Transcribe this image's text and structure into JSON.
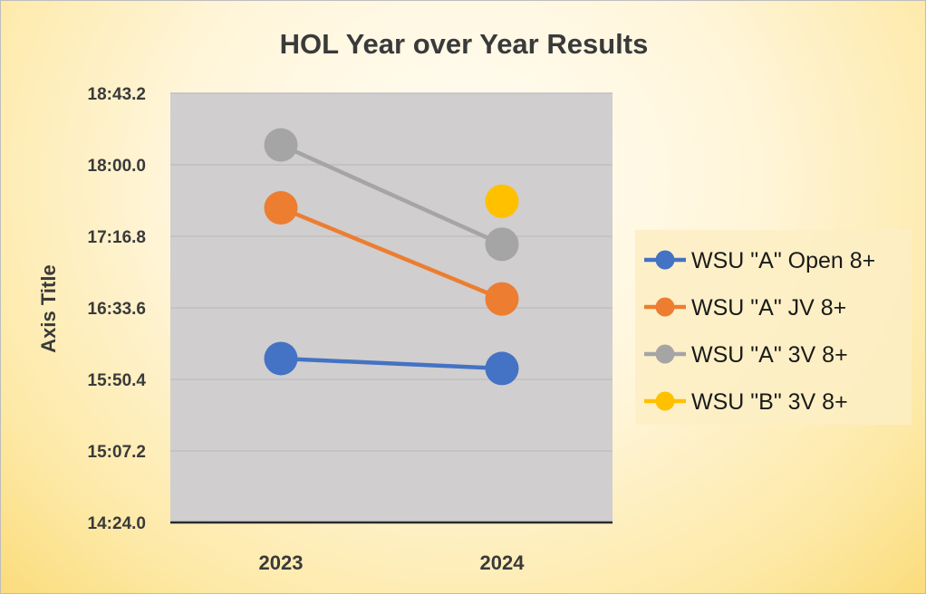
{
  "chart_data": {
    "type": "line",
    "title": "HOL Year over Year Results",
    "ylabel": "Axis Title",
    "xlabel": "",
    "categories": [
      "2023",
      "2024"
    ],
    "y_unit": "seconds",
    "ylim": [
      864,
      1123.2
    ],
    "y_ticks": [
      864,
      907.2,
      950.4,
      993.6,
      1036.8,
      1080,
      1123.2
    ],
    "y_tick_labels": [
      "14:24.0",
      "15:07.2",
      "15:50.4",
      "16:33.6",
      "17:16.8",
      "18:00.0",
      "18:43.2"
    ],
    "grid": true,
    "legend_position": "right",
    "series": [
      {
        "name": "WSU \"A\" Open 8+",
        "color": "#4472C4",
        "values": [
          963,
          957
        ]
      },
      {
        "name": "WSU \"A\" JV 8+",
        "color": "#ED7D31",
        "values": [
          1054,
          999
        ]
      },
      {
        "name": "WSU \"A\" 3V 8+",
        "color": "#A5A5A5",
        "values": [
          1092,
          1032
        ]
      },
      {
        "name": "WSU \"B\" 3V 8+",
        "color": "#FFC000",
        "values": [
          null,
          1058
        ]
      }
    ]
  }
}
